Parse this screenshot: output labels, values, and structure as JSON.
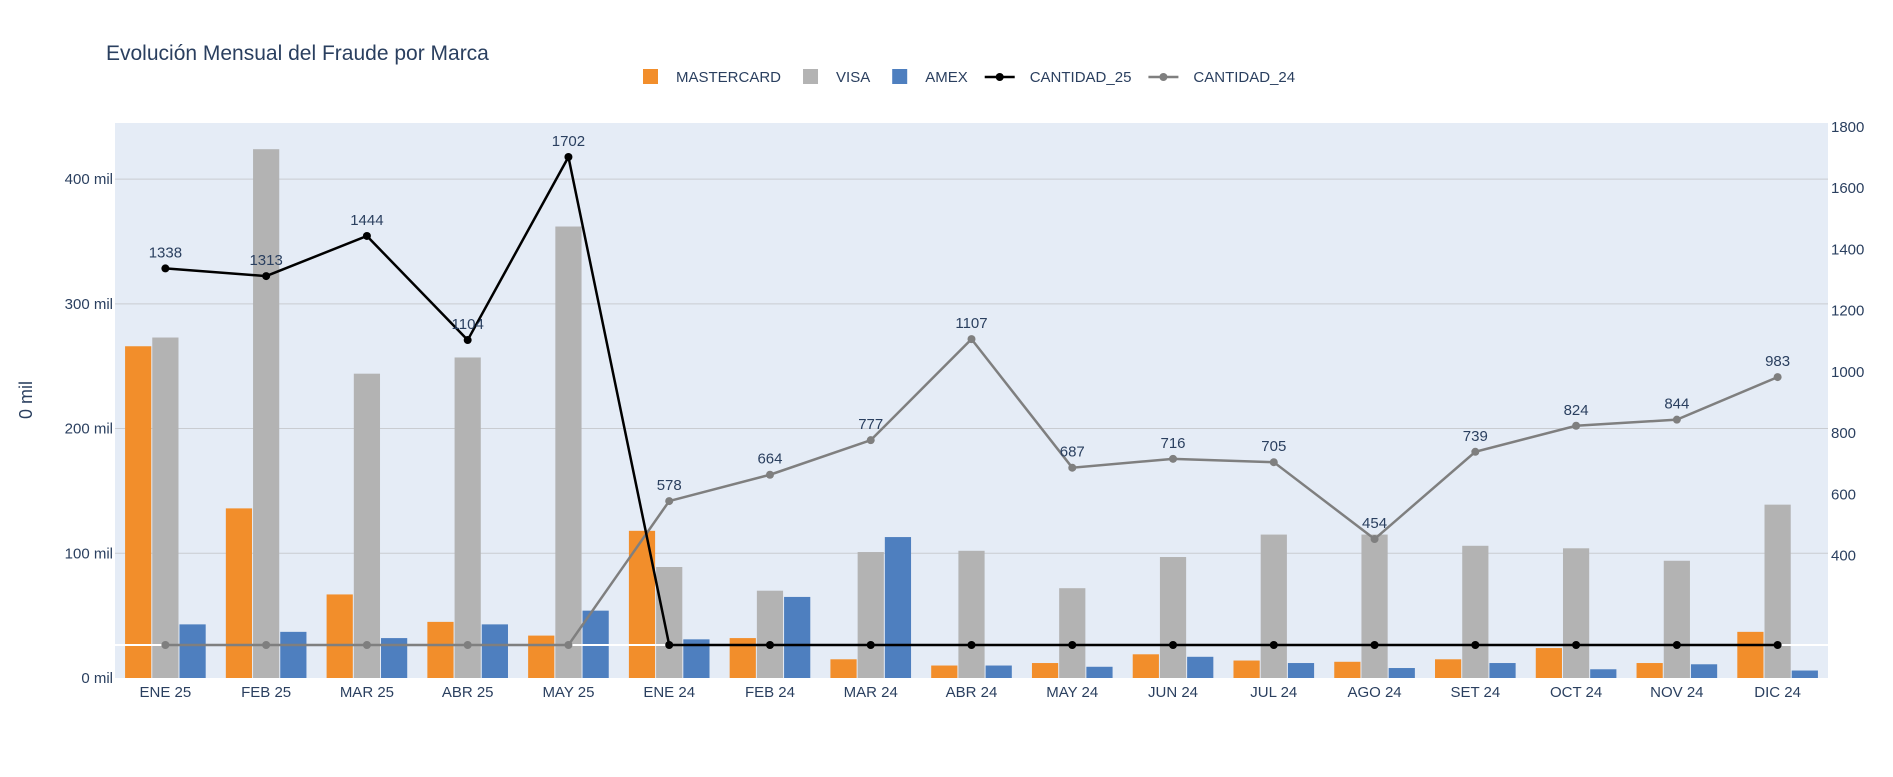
{
  "chart_data": {
    "type": "bar",
    "title": "Evolución Mensual del Fraude por Marca",
    "ylabel": "0 mil",
    "xlabel": "",
    "categories": [
      "ENE 25",
      "FEB 25",
      "MAR 25",
      "ABR 25",
      "MAY 25",
      "ENE 24",
      "FEB 24",
      "MAR 24",
      "ABR 24",
      "MAY 24",
      "JUN 24",
      "JUL 24",
      "AGO 24",
      "SET 24",
      "OCT 24",
      "NOV 24",
      "DIC 24"
    ],
    "ylim": [
      0,
      445
    ],
    "y2lim": [
      0,
      1800
    ],
    "yticks": [
      0,
      100,
      200,
      300,
      400
    ],
    "ytick_labels": [
      "0 mil",
      "100 mil",
      "200 mil",
      "300 mil",
      "400 mil"
    ],
    "y2ticks": [
      400,
      600,
      800,
      1000,
      1200,
      1400,
      1600,
      1800
    ],
    "y2tick_labels": [
      "400",
      "600",
      "800",
      "1000",
      "1200",
      "1400",
      "1600",
      "1800"
    ],
    "grid": true,
    "legend_position": "top-center",
    "series": [
      {
        "name": "MASTERCARD",
        "kind": "bar",
        "axis": "y",
        "color": "#F28E2B",
        "values": [
          266,
          136,
          67,
          45,
          34,
          118,
          32,
          15,
          10,
          12,
          19,
          14,
          13,
          15,
          24,
          12,
          37
        ]
      },
      {
        "name": "VISA",
        "kind": "bar",
        "axis": "y",
        "color": "#B3B3B3",
        "values": [
          273,
          424,
          244,
          257,
          362,
          89,
          70,
          101,
          102,
          72,
          97,
          115,
          115,
          106,
          104,
          94,
          139
        ]
      },
      {
        "name": "AMEX",
        "kind": "bar",
        "axis": "y",
        "color": "#4E7FBF",
        "values": [
          43,
          37,
          32,
          43,
          54,
          31,
          65,
          113,
          10,
          9,
          17,
          12,
          8,
          12,
          7,
          11,
          6
        ]
      },
      {
        "name": "CANTIDAD_25",
        "kind": "line",
        "axis": "y2",
        "color": "#000000",
        "values": [
          1338,
          1313,
          1444,
          1104,
          1702,
          0,
          0,
          0,
          0,
          0,
          0,
          0,
          0,
          0,
          0,
          0,
          0
        ],
        "labels": [
          "1338",
          "1313",
          "1444",
          "1104",
          "1702",
          "",
          "",
          "",
          "",
          "",
          "",
          "",
          "",
          "",
          "",
          "",
          ""
        ]
      },
      {
        "name": "CANTIDAD_24",
        "kind": "line",
        "axis": "y2",
        "color": "#7F7F7F",
        "values": [
          0,
          0,
          0,
          0,
          0,
          578,
          664,
          777,
          1107,
          687,
          716,
          705,
          454,
          739,
          824,
          844,
          983
        ],
        "labels": [
          "",
          "",
          "",
          "",
          "",
          "578",
          "664",
          "777",
          "1107",
          "687",
          "716",
          "705",
          "454",
          "739",
          "824",
          "844",
          "983"
        ]
      }
    ]
  }
}
